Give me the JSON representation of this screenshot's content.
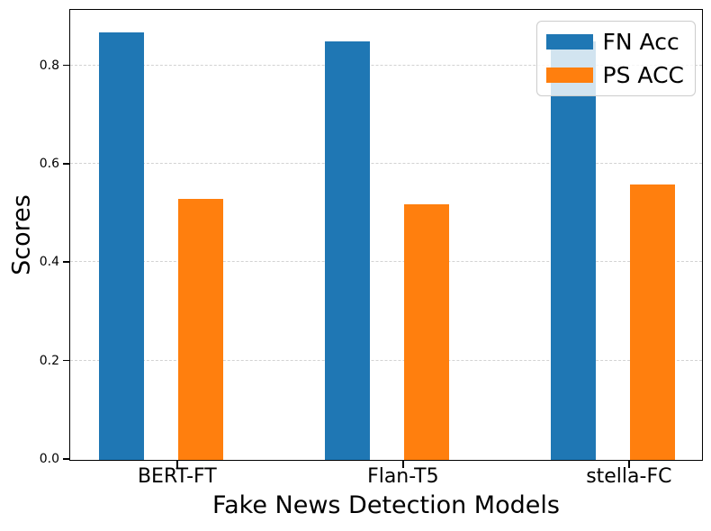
{
  "chart_data": {
    "type": "bar",
    "title": "",
    "xlabel": "Fake News Detection Models",
    "ylabel": "Scores",
    "categories": [
      "BERT-FT",
      "Flan-T5",
      "stella-FC"
    ],
    "series": [
      {
        "name": "FN Acc",
        "color": "#1f77b4",
        "values": [
          0.87,
          0.85,
          0.85
        ]
      },
      {
        "name": "PS ACC",
        "color": "#ff7f0e",
        "values": [
          0.53,
          0.52,
          0.56
        ]
      }
    ],
    "ylim": [
      0,
      0.913
    ],
    "yticks": [
      0.0,
      0.2,
      0.4,
      0.6,
      0.8
    ],
    "ytick_labels": [
      "0.0",
      "0.2",
      "0.4",
      "0.6",
      "0.8"
    ],
    "grid": "horizontal-dashed",
    "legend_position": "upper-right",
    "colors": {
      "grid": "#d2d2d2",
      "spine": "#000000",
      "legend_border": "#cccccc",
      "legend_background": "rgba(255,255,255,0.8)"
    }
  }
}
